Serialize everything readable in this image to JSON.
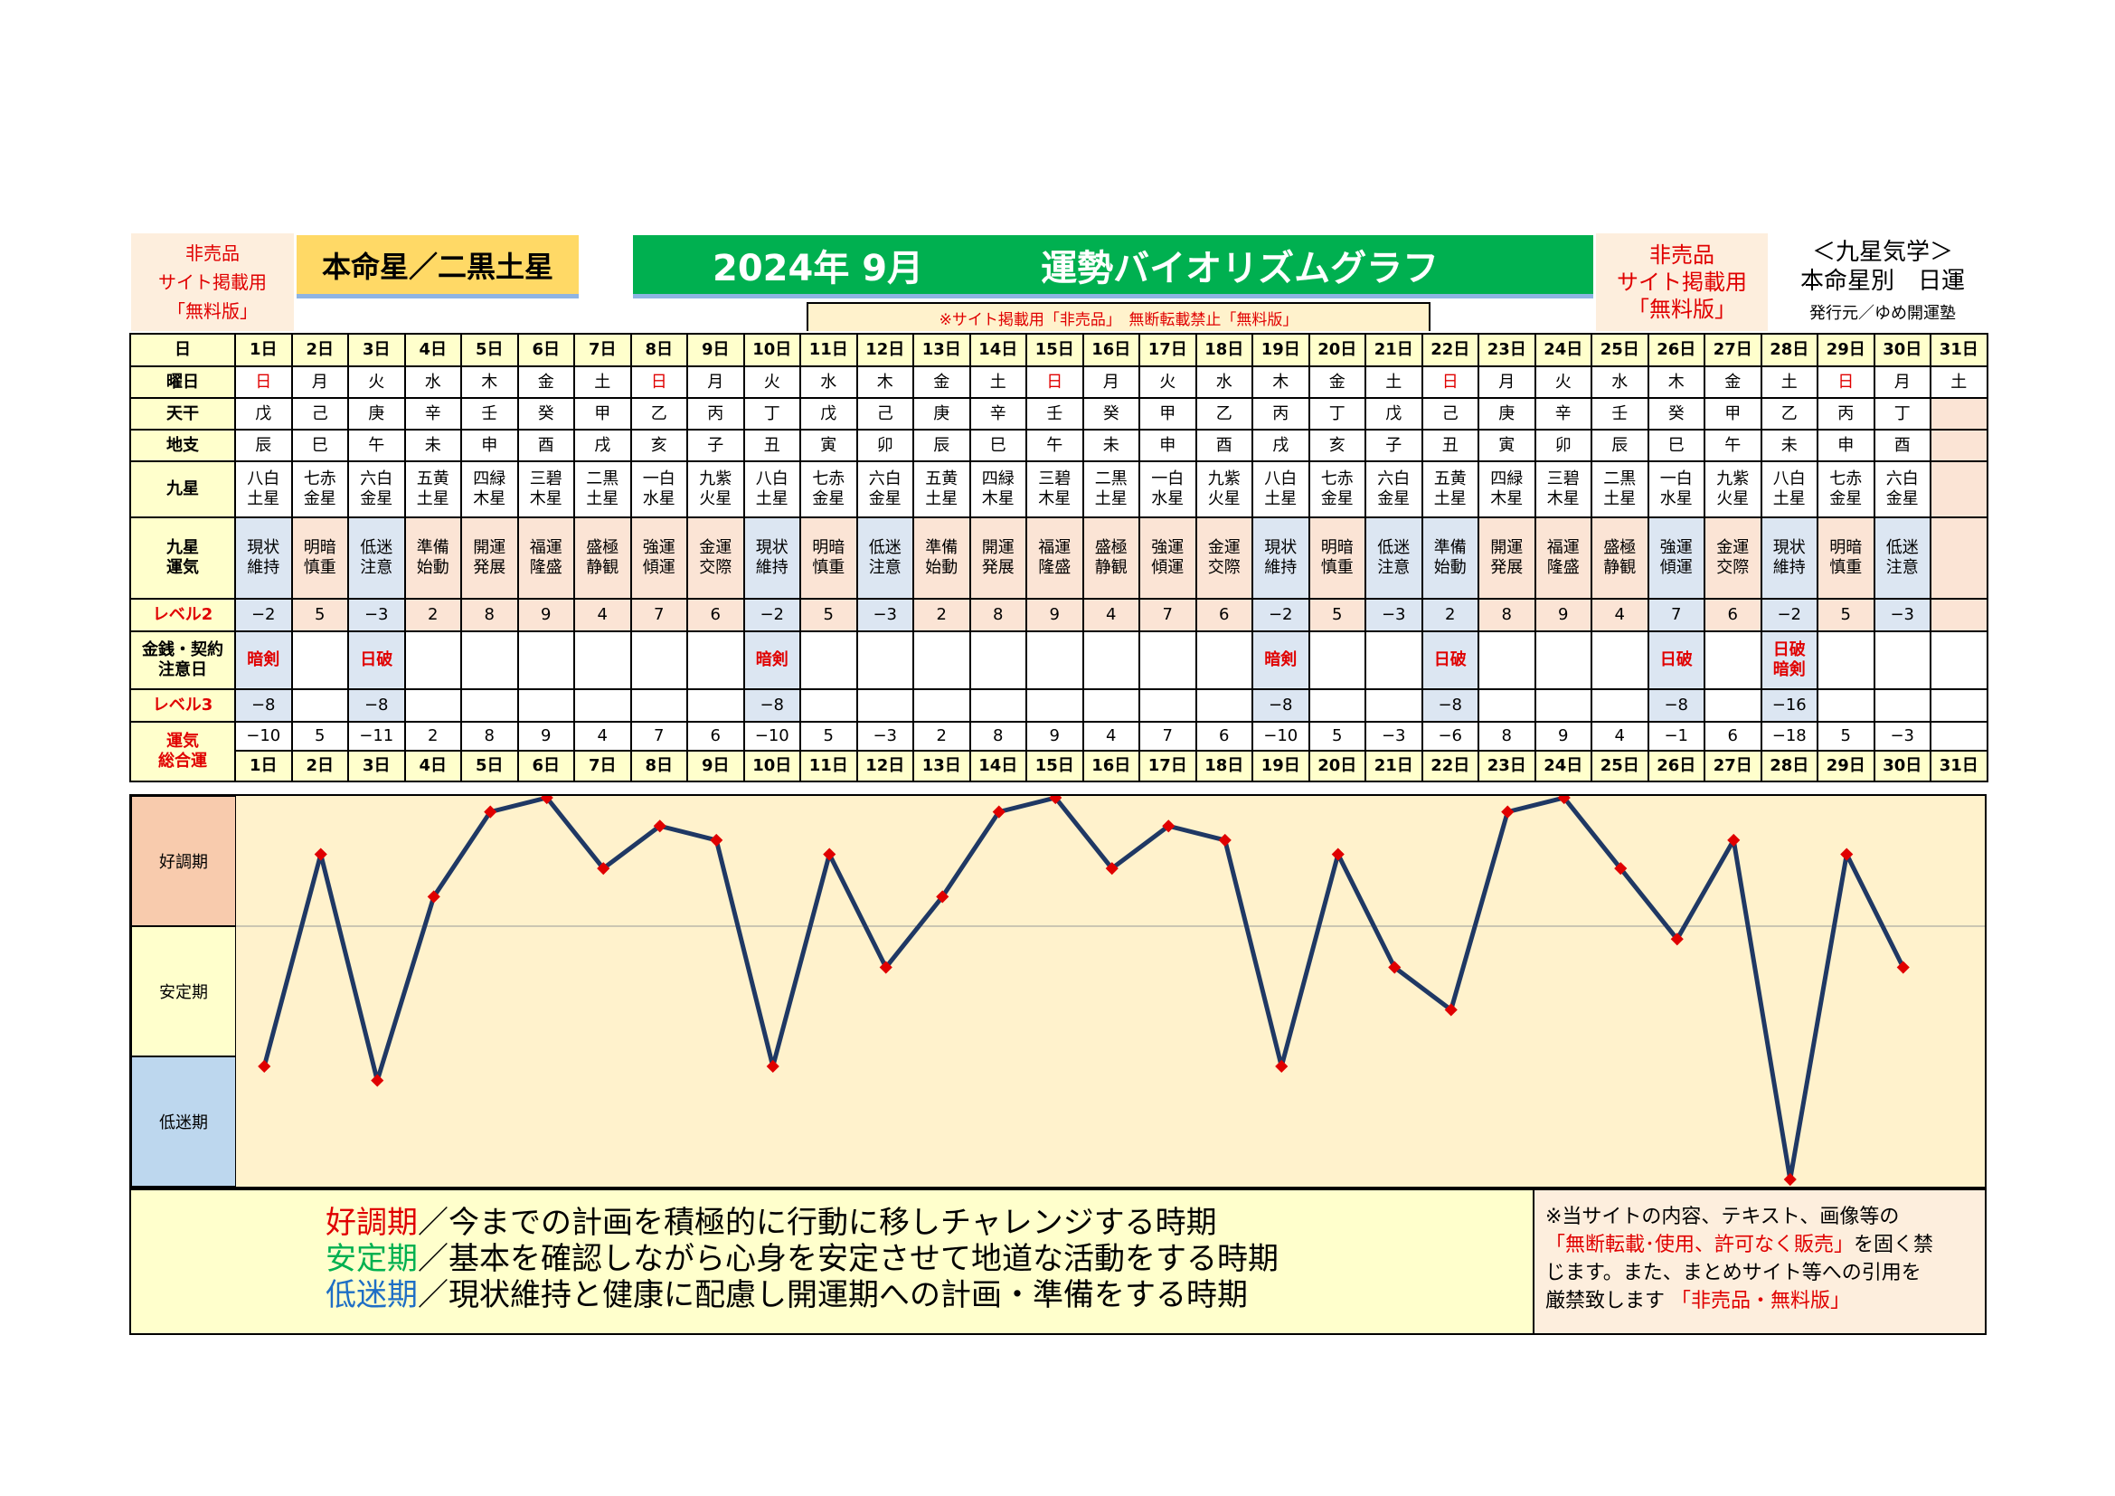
{
  "header": {
    "nonsale_left": [
      "非売品",
      "サイト掲載用",
      "「無料版」"
    ],
    "honmei": "本命星／二黒土星",
    "year_month": "2024年 9月",
    "title": "運勢バイオリズムグラフ",
    "nonsale_right": [
      "非売品",
      "サイト掲載用",
      "「無料版」"
    ],
    "nine_star": [
      "＜九星気学＞",
      "本命星別　日運"
    ],
    "publisher": "発行元／ゆめ開運塾",
    "notice": "※サイト掲載用「非売品」　無断転載禁止「無料版」"
  },
  "labels": {
    "day": "日",
    "weekday": "曜日",
    "tenkan": "天干",
    "chishi": "地支",
    "kyusei": "九星",
    "kyusei_unki": [
      "九星",
      "運気"
    ],
    "level2": "レベル2",
    "money": [
      "金銭・契約",
      "注意日"
    ],
    "level3": "レベル3",
    "total": [
      "運気",
      "総合運"
    ]
  },
  "days": [
    "1日",
    "2日",
    "3日",
    "4日",
    "5日",
    "6日",
    "7日",
    "8日",
    "9日",
    "10日",
    "11日",
    "12日",
    "13日",
    "14日",
    "15日",
    "16日",
    "17日",
    "18日",
    "19日",
    "20日",
    "21日",
    "22日",
    "23日",
    "24日",
    "25日",
    "26日",
    "27日",
    "28日",
    "29日",
    "30日",
    "31日"
  ],
  "weekdays": [
    "日",
    "月",
    "火",
    "水",
    "木",
    "金",
    "土",
    "日",
    "月",
    "火",
    "水",
    "木",
    "金",
    "土",
    "日",
    "月",
    "火",
    "水",
    "木",
    "金",
    "土",
    "日",
    "月",
    "火",
    "水",
    "木",
    "金",
    "土",
    "日",
    "月",
    "土"
  ],
  "tenkan": [
    "戊",
    "己",
    "庚",
    "辛",
    "壬",
    "癸",
    "甲",
    "乙",
    "丙",
    "丁",
    "戊",
    "己",
    "庚",
    "辛",
    "壬",
    "癸",
    "甲",
    "乙",
    "丙",
    "丁",
    "戊",
    "己",
    "庚",
    "辛",
    "壬",
    "癸",
    "甲",
    "乙",
    "丙",
    "丁",
    ""
  ],
  "chishi": [
    "辰",
    "巳",
    "午",
    "未",
    "申",
    "酉",
    "戌",
    "亥",
    "子",
    "丑",
    "寅",
    "卯",
    "辰",
    "巳",
    "午",
    "未",
    "申",
    "酉",
    "戌",
    "亥",
    "子",
    "丑",
    "寅",
    "卯",
    "辰",
    "巳",
    "午",
    "未",
    "申",
    "酉",
    ""
  ],
  "kyusei": [
    [
      "八白",
      "土星"
    ],
    [
      "七赤",
      "金星"
    ],
    [
      "六白",
      "金星"
    ],
    [
      "五黄",
      "土星"
    ],
    [
      "四緑",
      "木星"
    ],
    [
      "三碧",
      "木星"
    ],
    [
      "二黒",
      "土星"
    ],
    [
      "一白",
      "水星"
    ],
    [
      "九紫",
      "火星"
    ],
    [
      "八白",
      "土星"
    ],
    [
      "七赤",
      "金星"
    ],
    [
      "六白",
      "金星"
    ],
    [
      "五黄",
      "土星"
    ],
    [
      "四緑",
      "木星"
    ],
    [
      "三碧",
      "木星"
    ],
    [
      "二黒",
      "土星"
    ],
    [
      "一白",
      "水星"
    ],
    [
      "九紫",
      "火星"
    ],
    [
      "八白",
      "土星"
    ],
    [
      "七赤",
      "金星"
    ],
    [
      "六白",
      "金星"
    ],
    [
      "五黄",
      "土星"
    ],
    [
      "四緑",
      "木星"
    ],
    [
      "三碧",
      "木星"
    ],
    [
      "二黒",
      "土星"
    ],
    [
      "一白",
      "水星"
    ],
    [
      "九紫",
      "火星"
    ],
    [
      "八白",
      "土星"
    ],
    [
      "七赤",
      "金星"
    ],
    [
      "六白",
      "金星"
    ],
    [
      "",
      ""
    ]
  ],
  "unki": [
    [
      "現状",
      "維持"
    ],
    [
      "明暗",
      "慎重"
    ],
    [
      "低迷",
      "注意"
    ],
    [
      "準備",
      "始動"
    ],
    [
      "開運",
      "発展"
    ],
    [
      "福運",
      "隆盛"
    ],
    [
      "盛極",
      "静観"
    ],
    [
      "強運",
      "傾運"
    ],
    [
      "金運",
      "交際"
    ],
    [
      "現状",
      "維持"
    ],
    [
      "明暗",
      "慎重"
    ],
    [
      "低迷",
      "注意"
    ],
    [
      "準備",
      "始動"
    ],
    [
      "開運",
      "発展"
    ],
    [
      "福運",
      "隆盛"
    ],
    [
      "盛極",
      "静観"
    ],
    [
      "強運",
      "傾運"
    ],
    [
      "金運",
      "交際"
    ],
    [
      "現状",
      "維持"
    ],
    [
      "明暗",
      "慎重"
    ],
    [
      "低迷",
      "注意"
    ],
    [
      "準備",
      "始動"
    ],
    [
      "開運",
      "発展"
    ],
    [
      "福運",
      "隆盛"
    ],
    [
      "盛極",
      "静観"
    ],
    [
      "強運",
      "傾運"
    ],
    [
      "金運",
      "交際"
    ],
    [
      "現状",
      "維持"
    ],
    [
      "明暗",
      "慎重"
    ],
    [
      "低迷",
      "注意"
    ],
    [
      "",
      ""
    ]
  ],
  "level2": [
    "−2",
    "5",
    "−3",
    "2",
    "8",
    "9",
    "4",
    "7",
    "6",
    "−2",
    "5",
    "−3",
    "2",
    "8",
    "9",
    "4",
    "7",
    "6",
    "−2",
    "5",
    "−3",
    "2",
    "8",
    "9",
    "4",
    "7",
    "6",
    "−2",
    "5",
    "−3",
    ""
  ],
  "money": [
    [
      "暗剣"
    ],
    [],
    [
      "日破"
    ],
    [],
    [],
    [],
    [],
    [],
    [],
    [
      "暗剣"
    ],
    [],
    [],
    [],
    [],
    [],
    [],
    [],
    [],
    [
      "暗剣"
    ],
    [],
    [],
    [
      "日破"
    ],
    [],
    [],
    [],
    [
      "日破"
    ],
    [],
    [
      "日破",
      "暗剣"
    ],
    [],
    [],
    []
  ],
  "level3": [
    "−8",
    "",
    "−8",
    "",
    "",
    "",
    "",
    "",
    "",
    "−8",
    "",
    "",
    "",
    "",
    "",
    "",
    "",
    "",
    "−8",
    "",
    "",
    "−8",
    "",
    "",
    "",
    "−8",
    "",
    "−16",
    "",
    "",
    ""
  ],
  "total": [
    "−10",
    "5",
    "−11",
    "2",
    "8",
    "9",
    "4",
    "7",
    "6",
    "−10",
    "5",
    "−3",
    "2",
    "8",
    "9",
    "4",
    "7",
    "6",
    "−10",
    "5",
    "−3",
    "−6",
    "8",
    "9",
    "4",
    "−1",
    "6",
    "−18",
    "5",
    "−3",
    ""
  ],
  "zones": [
    "好調期",
    "安定期",
    "低迷期"
  ],
  "legend": [
    {
      "key": "好調期",
      "text": "／今までの計画を積極的に行動に移しチャレンジする時期"
    },
    {
      "key": "安定期",
      "text": "／基本を確認しながら心身を安定させて地道な活動をする時期"
    },
    {
      "key": "低迷期",
      "text": "／現状維持と健康に配慮し開運期への計画・準備をする時期"
    }
  ],
  "note": {
    "l1": "※当サイトの内容、テキスト、画像等の",
    "l2_red": "「無断転載･使用、許可なく販売」",
    "l2_rest": "を固く禁",
    "l3": "じます。また、まとめサイト等への引用を",
    "l4": "厳禁致します",
    "l4_red": "「非売品・無料版」"
  },
  "colors": {
    "line": "#1f3864",
    "marker": "#e00000",
    "zone_good": "#f8cbad",
    "zone_stable": "#ffffcc",
    "zone_low": "#bdd7ee",
    "plot_bg": "#fff2cc"
  },
  "chart_data": {
    "type": "line",
    "categories": [
      "1日",
      "2日",
      "3日",
      "4日",
      "5日",
      "6日",
      "7日",
      "8日",
      "9日",
      "10日",
      "11日",
      "12日",
      "13日",
      "14日",
      "15日",
      "16日",
      "17日",
      "18日",
      "19日",
      "20日",
      "21日",
      "22日",
      "23日",
      "24日",
      "25日",
      "26日",
      "27日",
      "28日",
      "29日",
      "30日",
      "31日"
    ],
    "series": [
      {
        "values": [
          -10,
          5,
          -11,
          2,
          8,
          9,
          4,
          7,
          6,
          -10,
          5,
          -3,
          2,
          8,
          9,
          4,
          7,
          6,
          -10,
          5,
          -3,
          -6,
          8,
          9,
          4,
          -1,
          6,
          -18,
          5,
          -3,
          null
        ]
      }
    ],
    "ylim": [
      -18,
      9
    ],
    "midline": 0,
    "grid": false
  }
}
